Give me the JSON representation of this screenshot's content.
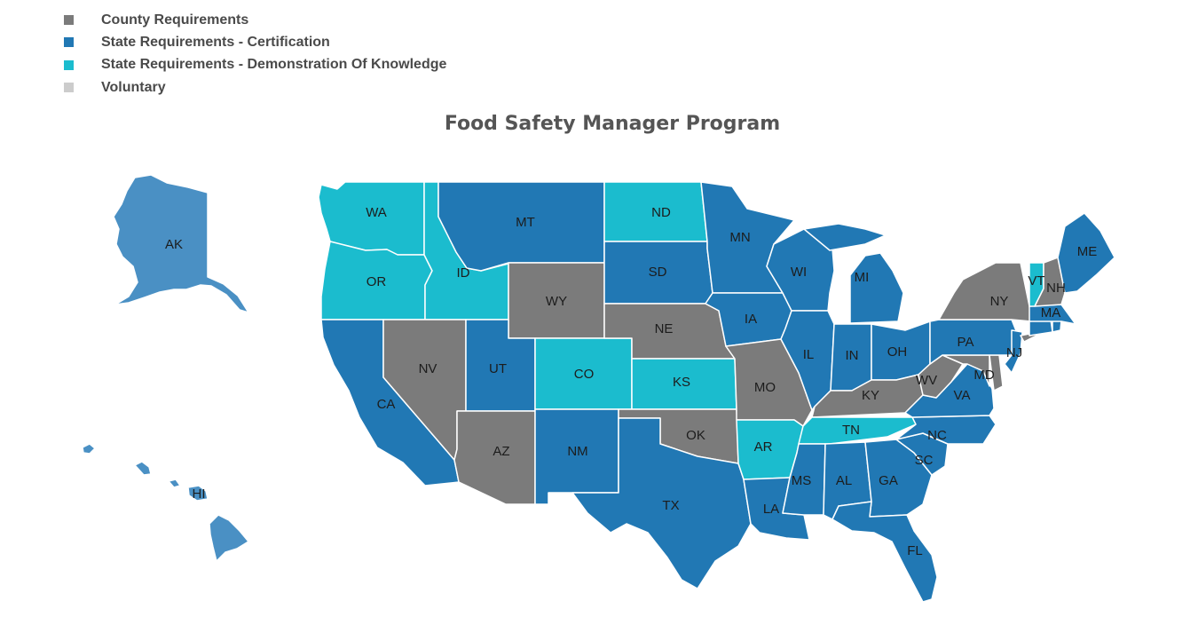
{
  "title": "Food Safety Manager Program",
  "legend": [
    {
      "key": "county",
      "label": "County Requirements",
      "color": "#7b7b7b"
    },
    {
      "key": "cert",
      "label": "State Requirements - Certification",
      "color": "#2178b4"
    },
    {
      "key": "demo",
      "label": "State Requirements - Demonstration Of Knowledge",
      "color": "#1bbcce"
    },
    {
      "key": "vol",
      "label": "Voluntary",
      "color": "#cccccc"
    }
  ],
  "non_contiguous_color": "#4a90c4",
  "states": [
    {
      "code": "AK",
      "category": "cert"
    },
    {
      "code": "HI",
      "category": "cert"
    },
    {
      "code": "WA",
      "category": "demo"
    },
    {
      "code": "OR",
      "category": "demo"
    },
    {
      "code": "ID",
      "category": "demo"
    },
    {
      "code": "CA",
      "category": "cert"
    },
    {
      "code": "NV",
      "category": "county"
    },
    {
      "code": "MT",
      "category": "cert"
    },
    {
      "code": "WY",
      "category": "county"
    },
    {
      "code": "UT",
      "category": "cert"
    },
    {
      "code": "AZ",
      "category": "county"
    },
    {
      "code": "CO",
      "category": "demo"
    },
    {
      "code": "NM",
      "category": "cert"
    },
    {
      "code": "ND",
      "category": "demo"
    },
    {
      "code": "SD",
      "category": "cert"
    },
    {
      "code": "NE",
      "category": "county"
    },
    {
      "code": "KS",
      "category": "demo"
    },
    {
      "code": "OK",
      "category": "county"
    },
    {
      "code": "TX",
      "category": "cert"
    },
    {
      "code": "MN",
      "category": "cert"
    },
    {
      "code": "IA",
      "category": "cert"
    },
    {
      "code": "MO",
      "category": "county"
    },
    {
      "code": "AR",
      "category": "demo"
    },
    {
      "code": "LA",
      "category": "cert"
    },
    {
      "code": "WI",
      "category": "cert"
    },
    {
      "code": "IL",
      "category": "cert"
    },
    {
      "code": "MI",
      "category": "cert"
    },
    {
      "code": "IN",
      "category": "cert"
    },
    {
      "code": "OH",
      "category": "cert"
    },
    {
      "code": "KY",
      "category": "county"
    },
    {
      "code": "TN",
      "category": "demo"
    },
    {
      "code": "MS",
      "category": "cert"
    },
    {
      "code": "AL",
      "category": "cert"
    },
    {
      "code": "GA",
      "category": "cert"
    },
    {
      "code": "FL",
      "category": "cert"
    },
    {
      "code": "SC",
      "category": "cert"
    },
    {
      "code": "NC",
      "category": "cert"
    },
    {
      "code": "VA",
      "category": "cert"
    },
    {
      "code": "WV",
      "category": "county"
    },
    {
      "code": "MD",
      "category": "county"
    },
    {
      "code": "DE",
      "category": "county"
    },
    {
      "code": "PA",
      "category": "cert"
    },
    {
      "code": "NJ",
      "category": "cert"
    },
    {
      "code": "NY",
      "category": "county"
    },
    {
      "code": "CT",
      "category": "cert"
    },
    {
      "code": "RI",
      "category": "cert"
    },
    {
      "code": "MA",
      "category": "cert"
    },
    {
      "code": "VT",
      "category": "demo"
    },
    {
      "code": "NH",
      "category": "county"
    },
    {
      "code": "ME",
      "category": "cert"
    }
  ],
  "unlabeled_states": [
    "DE",
    "CT",
    "RI"
  ]
}
